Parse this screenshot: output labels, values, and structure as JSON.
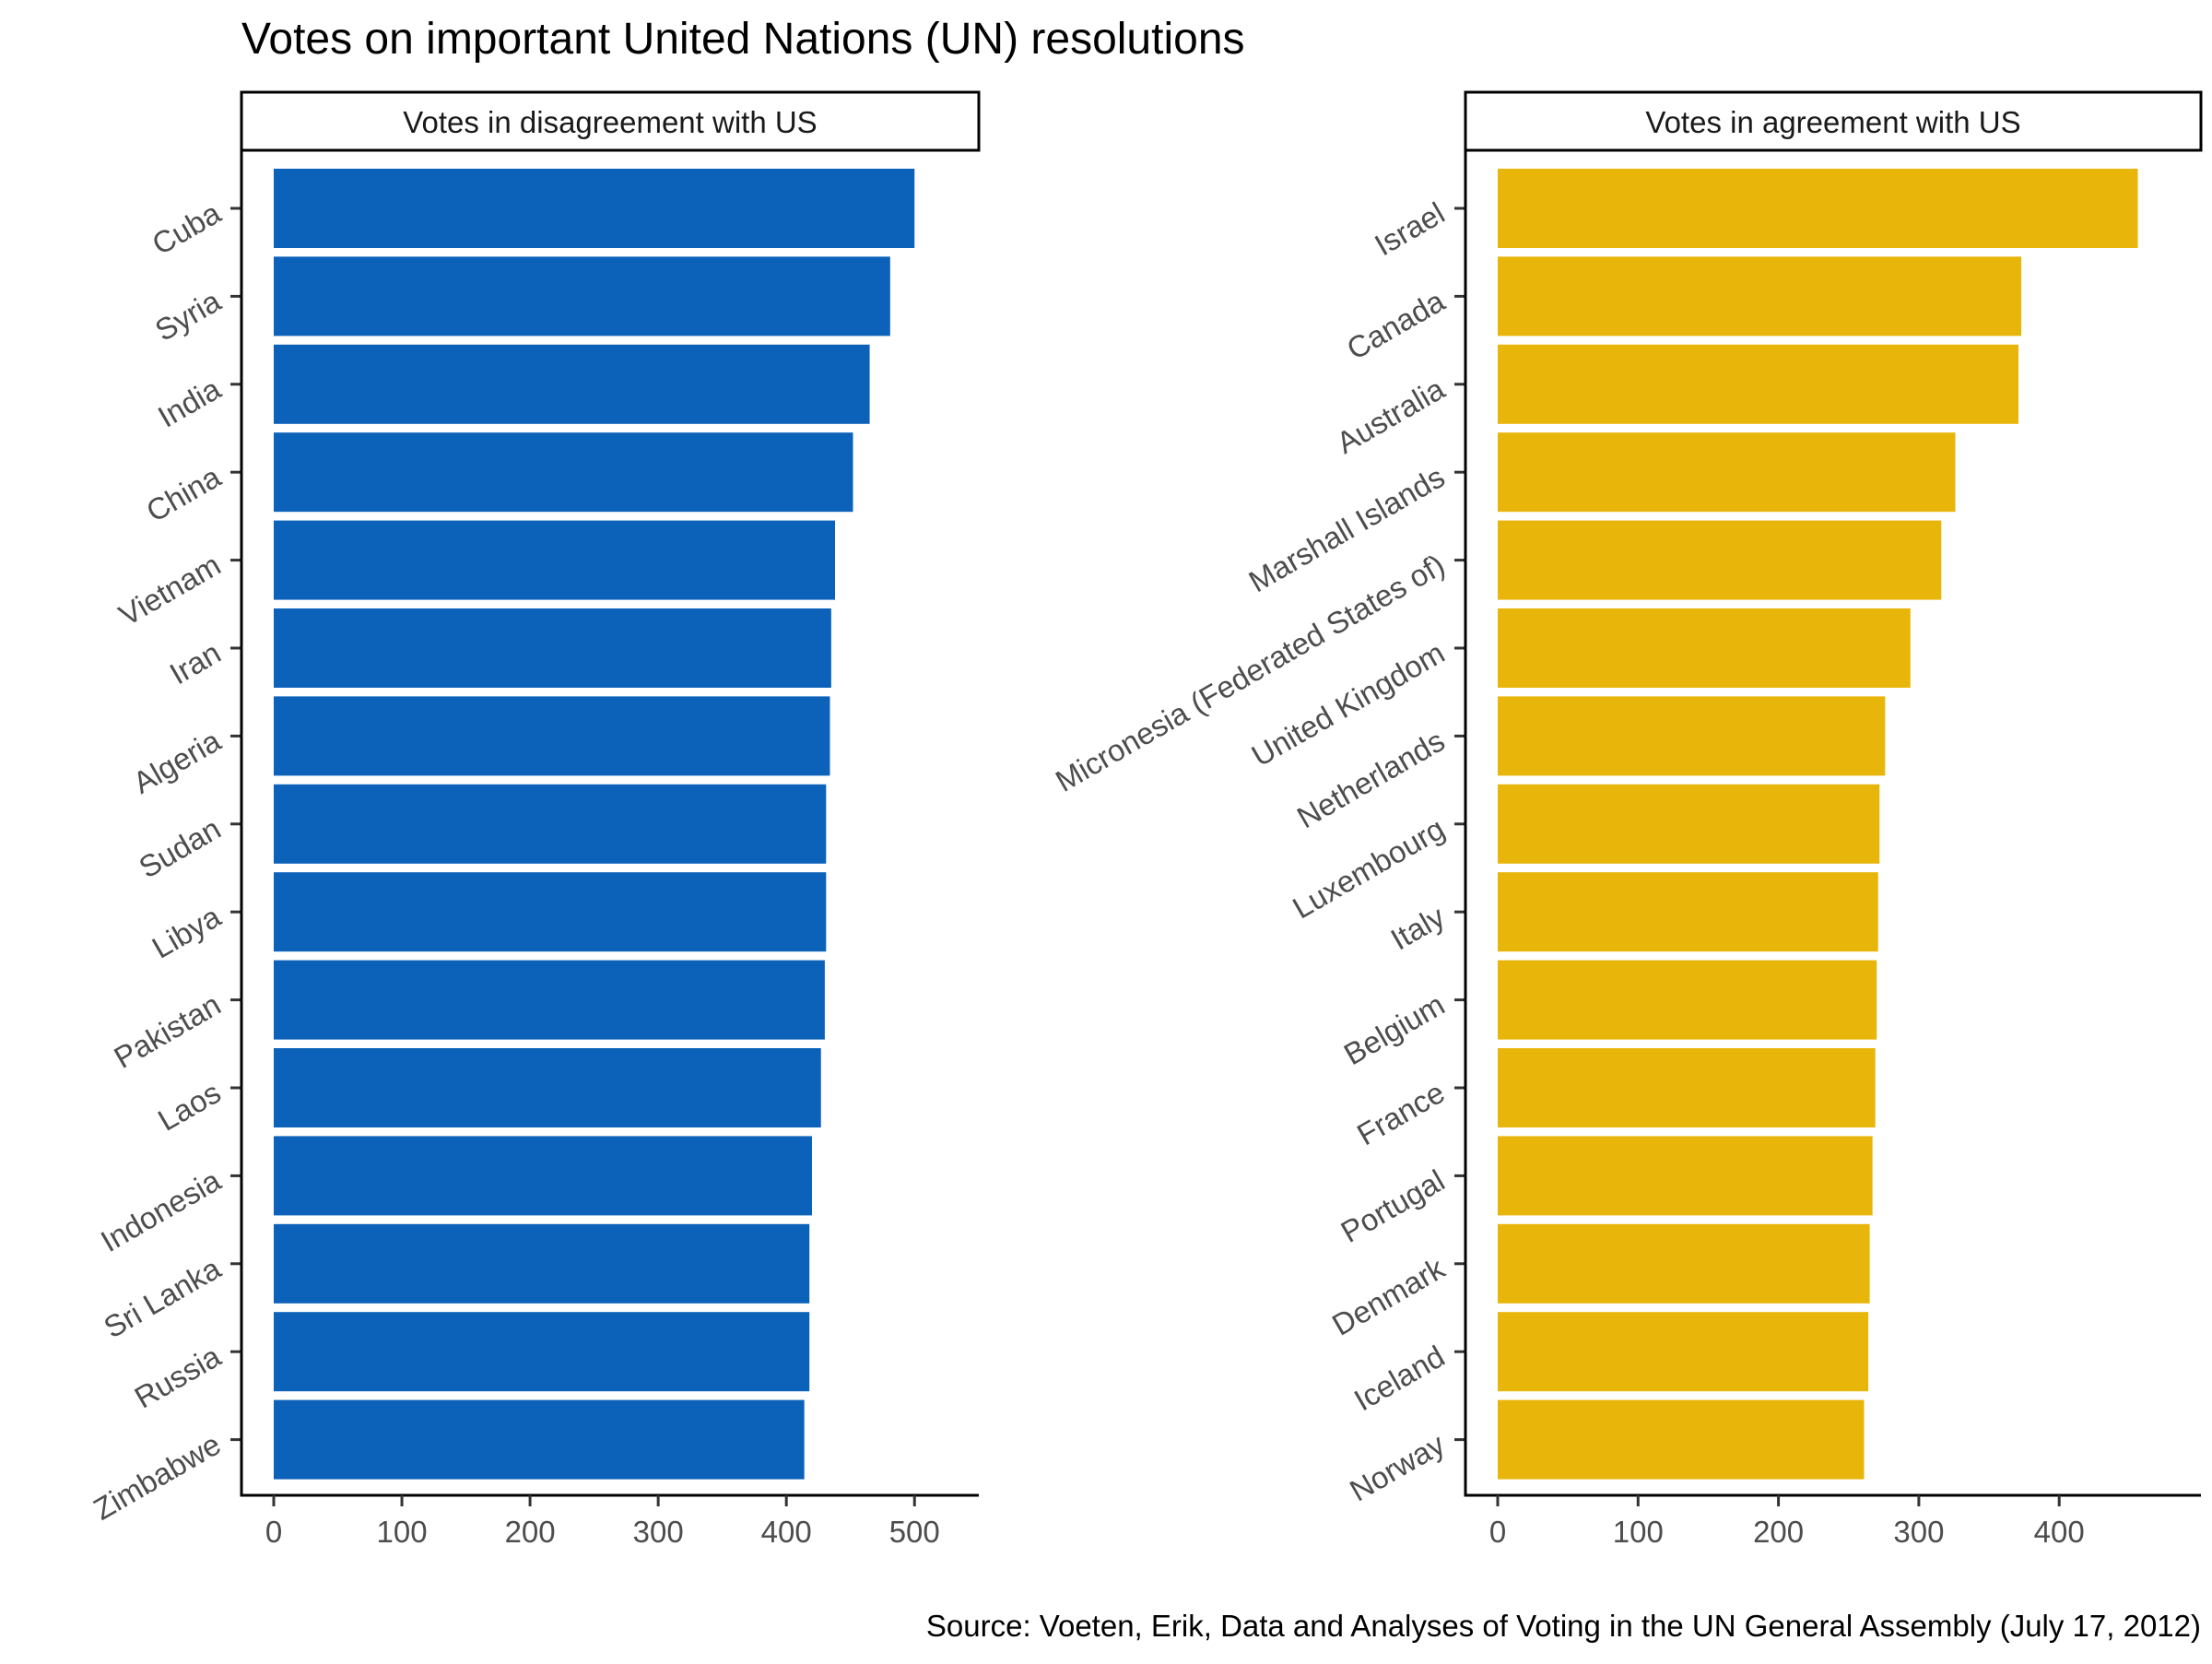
{
  "title": "Votes on important United Nations (UN) resolutions",
  "caption": "Source: Voeten, Erik, Data and Analyses of Voting in the UN General Assembly (July 17, 2012)",
  "chart_data": [
    {
      "type": "bar",
      "orientation": "horizontal",
      "panel_title": "Votes in disagreement with US",
      "color": "#0c61b9",
      "categories": [
        "Cuba",
        "Syria",
        "India",
        "China",
        "Vietnam",
        "Iran",
        "Algeria",
        "Sudan",
        "Libya",
        "Pakistan",
        "Laos",
        "Indonesia",
        "Sri Lanka",
        "Russia",
        "Zimbabwe"
      ],
      "values": [
        500,
        481,
        465,
        452,
        438,
        435,
        434,
        431,
        431,
        430,
        427,
        420,
        418,
        418,
        414
      ],
      "xlim": [
        0,
        525
      ],
      "xticks": [
        0,
        100,
        200,
        300,
        400,
        500
      ],
      "xlabel": "",
      "ylabel": "",
      "grid": false
    },
    {
      "type": "bar",
      "orientation": "horizontal",
      "panel_title": "Votes in agreement with US",
      "color": "#e8b50a",
      "categories": [
        "Israel",
        "Canada",
        "Australia",
        "Marshall Islands",
        "Micronesia (Federated States of)",
        "United Kingdom",
        "Netherlands",
        "Luxembourg",
        "Italy",
        "Belgium",
        "France",
        "Portugal",
        "Denmark",
        "Iceland",
        "Norway"
      ],
      "values": [
        456,
        373,
        371,
        326,
        316,
        294,
        276,
        272,
        271,
        270,
        269,
        267,
        265,
        264,
        261
      ],
      "xlim": [
        0,
        478
      ],
      "xticks": [
        0,
        100,
        200,
        300,
        400
      ],
      "xlabel": "",
      "ylabel": "",
      "grid": false
    }
  ]
}
